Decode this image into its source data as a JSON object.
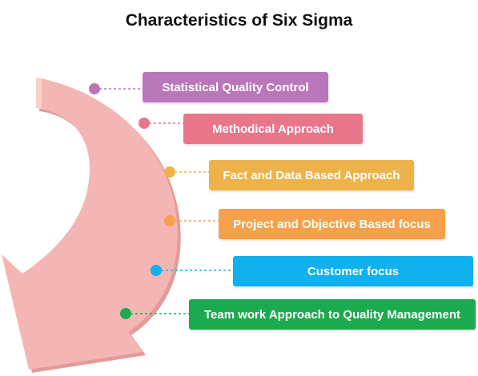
{
  "title": "Characteristics of Six Sigma",
  "items": [
    {
      "label": "Statistical Quality Control",
      "color": "#b977b9",
      "dot_color": "#b977b9"
    },
    {
      "label": "Methodical Approach",
      "color": "#e8768a",
      "dot_color": "#e8768a"
    },
    {
      "label": "Fact and Data Based Approach",
      "color": "#edb24a",
      "dot_color": "#edb24a"
    },
    {
      "label": "Project and Objective Based focus",
      "color": "#f5a14b",
      "dot_color": "#f5a14b"
    },
    {
      "label": "Customer focus",
      "color": "#0fb0ee",
      "dot_color": "#0fb0ee"
    },
    {
      "label": "Team work Approach to Quality Management",
      "color": "#1caa50",
      "dot_color": "#1caa50"
    }
  ],
  "arrow_color": "#f4b6b4"
}
